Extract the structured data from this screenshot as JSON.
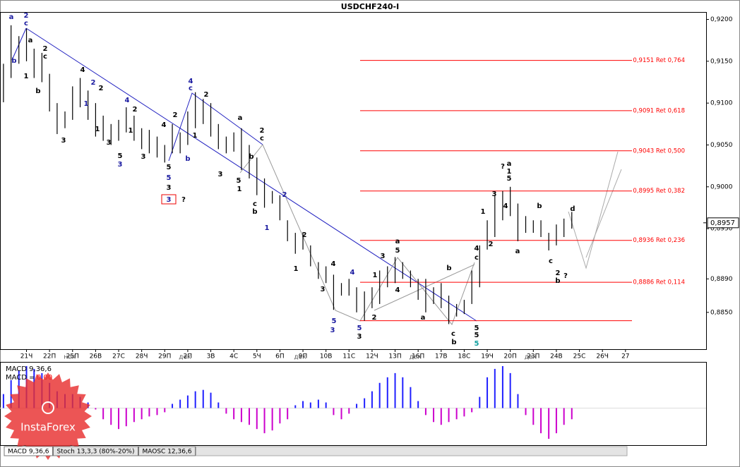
{
  "chart_data": [
    {
      "type": "ohlc",
      "title": "USDCHF240-I",
      "x": [
        0,
        0.33,
        0.67,
        1,
        1.33,
        1.67,
        2,
        2.33,
        2.67,
        3,
        3.33,
        3.67,
        4,
        4.33,
        4.67,
        5,
        5.33,
        5.67,
        6,
        6.33,
        6.67,
        7,
        7.33,
        7.67,
        8,
        8.33,
        8.67,
        9,
        9.33,
        9.67,
        10,
        10.33,
        10.67,
        11,
        11.33,
        11.67,
        12,
        12.33,
        12.67,
        13,
        13.33,
        13.67,
        14,
        14.33,
        14.67,
        15,
        15.33,
        15.67,
        16,
        16.33,
        16.67,
        17,
        17.33,
        17.67,
        18,
        18.33,
        18.67,
        19,
        19.33,
        19.67,
        20,
        20.33,
        20.67,
        21,
        21.33,
        21.67,
        22,
        22.33,
        22.67,
        23,
        23.33,
        23.67,
        24,
        24.33,
        24.67
      ],
      "high": [
        0.9147,
        0.9193,
        0.918,
        0.9189,
        0.9165,
        0.916,
        0.9135,
        0.91,
        0.909,
        0.912,
        0.913,
        0.9115,
        0.91,
        0.9085,
        0.9075,
        0.908,
        0.9095,
        0.9085,
        0.907,
        0.9068,
        0.906,
        0.905,
        0.9075,
        0.9065,
        0.909,
        0.9113,
        0.9105,
        0.91,
        0.9075,
        0.906,
        0.9065,
        0.907,
        0.905,
        0.9035,
        0.901,
        0.8995,
        0.899,
        0.896,
        0.8945,
        0.8945,
        0.893,
        0.891,
        0.8905,
        0.8895,
        0.8885,
        0.889,
        0.888,
        0.8875,
        0.888,
        0.89,
        0.8905,
        0.8916,
        0.891,
        0.89,
        0.889,
        0.889,
        0.888,
        0.8885,
        0.887,
        0.886,
        0.8865,
        0.89,
        0.893,
        0.896,
        0.899,
        0.8995,
        0.9,
        0.898,
        0.8965,
        0.896,
        0.896,
        0.8945,
        0.8955,
        0.8962,
        0.897
      ],
      "low": [
        0.9101,
        0.913,
        0.9147,
        0.915,
        0.913,
        0.9125,
        0.909,
        0.9063,
        0.907,
        0.908,
        0.9095,
        0.908,
        0.906,
        0.9055,
        0.905,
        0.9055,
        0.9065,
        0.9055,
        0.9045,
        0.904,
        0.9035,
        0.9029,
        0.904,
        0.904,
        0.905,
        0.907,
        0.9075,
        0.906,
        0.9045,
        0.904,
        0.9042,
        0.902,
        0.901,
        0.899,
        0.8975,
        0.898,
        0.896,
        0.8935,
        0.892,
        0.8925,
        0.8905,
        0.889,
        0.8885,
        0.8853,
        0.887,
        0.887,
        0.885,
        0.884,
        0.8855,
        0.886,
        0.888,
        0.8885,
        0.889,
        0.888,
        0.8865,
        0.885,
        0.886,
        0.8855,
        0.8836,
        0.8845,
        0.8848,
        0.886,
        0.888,
        0.8925,
        0.894,
        0.896,
        0.8965,
        0.8935,
        0.8945,
        0.8945,
        0.894,
        0.8924,
        0.893,
        0.894,
        0.895
      ],
      "color": "#000000",
      "xlim": [
        -0.15,
        30.5
      ],
      "xticks": [
        {
          "value": 1,
          "label": "21Ч"
        },
        {
          "value": 2,
          "label": "22П"
        },
        {
          "value": 3,
          "label": "25П"
        },
        {
          "value": 4,
          "label": "26В"
        },
        {
          "value": 5,
          "label": "27С"
        },
        {
          "value": 6,
          "label": "28Ч"
        },
        {
          "value": 7,
          "label": "29П"
        },
        {
          "value": 8,
          "label": "2П"
        },
        {
          "value": 9,
          "label": "3В"
        },
        {
          "value": 10,
          "label": "4С"
        },
        {
          "value": 11,
          "label": "5Ч"
        },
        {
          "value": 12,
          "label": "6П"
        },
        {
          "value": 13,
          "label": "9П"
        },
        {
          "value": 14,
          "label": "10В"
        },
        {
          "value": 15,
          "label": "11С"
        },
        {
          "value": 16,
          "label": "12Ч"
        },
        {
          "value": 17,
          "label": "13П"
        },
        {
          "value": 18,
          "label": "16П"
        },
        {
          "value": 19,
          "label": "17В"
        },
        {
          "value": 20,
          "label": "18С"
        },
        {
          "value": 21,
          "label": "19Ч"
        },
        {
          "value": 22,
          "label": "20П"
        },
        {
          "value": 23,
          "label": "23П"
        },
        {
          "value": 24,
          "label": "24В"
        },
        {
          "value": 25,
          "label": "25С"
        },
        {
          "value": 26,
          "label": "26Ч"
        },
        {
          "value": 27,
          "label": "27"
        }
      ],
      "month_ticks": [
        {
          "value": 3,
          "label": "ноя"
        },
        {
          "value": 8,
          "label": "дек"
        },
        {
          "value": 13,
          "label": "дек"
        },
        {
          "value": 18,
          "label": "дек"
        },
        {
          "value": 23,
          "label": "дек"
        }
      ],
      "ylim": [
        0.8806,
        0.9208
      ],
      "yticks": [
        {
          "value": 0.885,
          "label": "0,8850"
        },
        {
          "value": 0.889,
          "label": "0,8890"
        },
        {
          "value": 0.895,
          "label": "0,8950"
        },
        {
          "value": 0.9,
          "label": "0,9000"
        },
        {
          "value": 0.905,
          "label": "0,9050"
        },
        {
          "value": 0.91,
          "label": "0,9100"
        },
        {
          "value": 0.915,
          "label": "0,9150"
        },
        {
          "value": 0.92,
          "label": "0,9200"
        }
      ],
      "levels": [
        {
          "value": 0.9151,
          "label": "0,9151 Ret 0,764"
        },
        {
          "value": 0.9091,
          "label": "0,9091 Ret 0,618"
        },
        {
          "value": 0.9043,
          "label": "0,9043 Ret 0,500"
        },
        {
          "value": 0.8995,
          "label": "0,8995 Ret 0,382"
        },
        {
          "value": 0.8936,
          "label": "0,8936 Ret 0,236"
        },
        {
          "value": 0.8886,
          "label": "0,8886 Ret 0,114"
        }
      ],
      "level_color": "#ff0000",
      "baseline": 0.884,
      "last_price": {
        "value": 0.8957,
        "label": "0,8957"
      },
      "wave_labels": [
        "a",
        "2",
        "c",
        "b",
        "a",
        "1",
        "2",
        "c",
        "b",
        "3",
        "4",
        "2",
        "1",
        "2",
        "4",
        "2",
        "1",
        "3",
        "5",
        "3",
        "1",
        "3",
        "4",
        "2",
        "5",
        "5",
        "3",
        "?",
        "4",
        "c",
        "2",
        "1",
        "b",
        "a",
        "3",
        "5",
        "1",
        "2",
        "c",
        "b",
        "c",
        "b",
        "2",
        "1",
        "2",
        "1",
        "4",
        "3",
        "5",
        "3",
        "4",
        "5",
        "3",
        "2",
        "1",
        "3",
        "a",
        "5",
        "4",
        "a",
        "b",
        "c",
        "b",
        "4",
        "c",
        "5",
        "5",
        "5",
        "1",
        "2",
        "3",
        "4",
        "?",
        "a",
        "1",
        "5",
        "a",
        "b",
        "c",
        "d",
        "2",
        "b",
        "?"
      ],
      "boxed_label": "3"
    },
    {
      "type": "histogram",
      "name": "MACD 9,36,6",
      "readout_name": "MACD =",
      "readout": "0,00",
      "values": [
        0.001,
        0.002,
        0.0027,
        0.003,
        0.0028,
        0.0025,
        0.0018,
        0.0012,
        0.001,
        0.001,
        0.0008,
        0.0004,
        -0.0001,
        -0.0008,
        -0.0012,
        -0.0015,
        -0.0013,
        -0.001,
        -0.0008,
        -0.0006,
        -0.0005,
        -0.0003,
        0.0003,
        0.0006,
        0.0009,
        0.0012,
        0.0013,
        0.0011,
        0.0004,
        -0.0004,
        -0.0008,
        -0.001,
        -0.0012,
        -0.0015,
        -0.0018,
        -0.0016,
        -0.0011,
        -0.0008,
        0.0002,
        0.0005,
        0.0004,
        0.0006,
        0.0004,
        -0.0005,
        -0.0008,
        -0.0004,
        0.0003,
        0.0007,
        0.0012,
        0.0018,
        0.0022,
        0.0025,
        0.0022,
        0.0015,
        0.0005,
        -0.0005,
        -0.001,
        -0.0012,
        -0.001,
        -0.0008,
        -0.0006,
        -0.0003,
        0.0008,
        0.0022,
        0.0028,
        0.003,
        0.0025,
        0.001,
        -0.0005,
        -0.0012,
        -0.0018,
        -0.0022,
        -0.0018,
        -0.0012,
        -0.0008
      ],
      "pos_color": "#2020ff",
      "neg_color": "#cc00cc",
      "readout_color": "#ff0000",
      "ylim": [
        -0.0026,
        0.0032
      ]
    }
  ],
  "tabs": [
    "MACD 9,36,6",
    "Stoch 13,3,3 (80%-20%)",
    "MAOSC 12,36,6"
  ],
  "watermark": "InstaForex"
}
